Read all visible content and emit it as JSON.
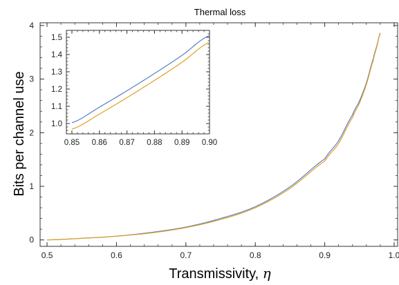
{
  "chart_data": [
    {
      "type": "line",
      "title": "Thermal loss",
      "xlabel": "Transmissivity, ",
      "xlabel_symbol": "η",
      "ylabel": "Bits per channel use",
      "xlim": [
        0.49,
        1.005
      ],
      "ylim": [
        -0.12,
        4.05
      ],
      "xticks": [
        0.5,
        0.6,
        0.7,
        0.8,
        0.9,
        1.0
      ],
      "xtick_labels": [
        "0.5",
        "0.6",
        "0.7",
        "0.8",
        "0.9",
        "1.0"
      ],
      "yticks": [
        0,
        1,
        2,
        3,
        4
      ],
      "ytick_labels": [
        "0",
        "1",
        "2",
        "3",
        "4"
      ],
      "grid": false,
      "legend": "none",
      "series": [
        {
          "color": "#5b7fc0",
          "x": [
            0.5,
            0.55,
            0.6,
            0.65,
            0.7,
            0.75,
            0.8,
            0.85,
            0.9,
            0.92,
            0.94,
            0.95,
            0.96,
            0.97,
            0.975,
            0.98
          ],
          "y": [
            0.0,
            0.03,
            0.07,
            0.14,
            0.24,
            0.4,
            0.62,
            0.99,
            1.51,
            1.85,
            2.33,
            2.59,
            2.93,
            3.38,
            3.62,
            3.86
          ]
        },
        {
          "color": "#e0a020",
          "x": [
            0.5,
            0.55,
            0.6,
            0.65,
            0.7,
            0.75,
            0.8,
            0.85,
            0.9,
            0.92,
            0.94,
            0.95,
            0.96,
            0.97,
            0.975,
            0.98
          ],
          "y": [
            0.0,
            0.03,
            0.07,
            0.13,
            0.23,
            0.38,
            0.6,
            0.96,
            1.47,
            1.8,
            2.28,
            2.55,
            2.9,
            3.35,
            3.6,
            3.85
          ]
        }
      ]
    },
    {
      "type": "line",
      "xlim": [
        0.848,
        0.9
      ],
      "ylim": [
        0.94,
        1.54
      ],
      "xticks": [
        0.85,
        0.86,
        0.87,
        0.88,
        0.89,
        0.9
      ],
      "xtick_labels": [
        "0.85",
        "0.86",
        "0.87",
        "0.88",
        "0.89",
        "0.90"
      ],
      "yticks": [
        1.0,
        1.1,
        1.2,
        1.3,
        1.4,
        1.5
      ],
      "ytick_labels": [
        "1.0",
        "1.1",
        "1.2",
        "1.3",
        "1.4",
        "1.5"
      ],
      "series": [
        {
          "color": "#5b7fc0",
          "x": [
            0.85,
            0.86,
            0.87,
            0.88,
            0.89,
            0.9
          ],
          "y": [
            1.005,
            1.095,
            1.19,
            1.29,
            1.395,
            1.51
          ]
        },
        {
          "color": "#e0a020",
          "x": [
            0.85,
            0.86,
            0.87,
            0.88,
            0.89,
            0.9
          ],
          "y": [
            0.968,
            1.055,
            1.15,
            1.25,
            1.355,
            1.47
          ]
        }
      ]
    }
  ]
}
